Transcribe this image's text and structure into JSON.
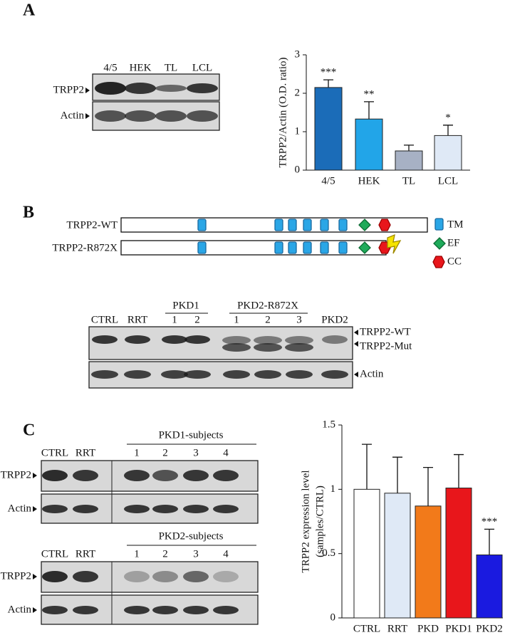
{
  "panel_labels": [
    "A",
    "B",
    "C"
  ],
  "panel_a": {
    "lanes": [
      "4/5",
      "HEK",
      "TL",
      "LCL"
    ],
    "rows": [
      "TRPP2",
      "Actin"
    ]
  },
  "panel_b": {
    "constructs": [
      "TRPP2-WT",
      "TRPP2-R872X"
    ],
    "legend": [
      "TM",
      "EF",
      "CC"
    ],
    "blot": {
      "groups": [
        "PKD1",
        "PKD2-R872X"
      ],
      "lanes": [
        "CTRL",
        "RRT",
        "1",
        "2",
        "1",
        "2",
        "3",
        "PKD2"
      ],
      "rows": [
        "TRPP2-WT",
        "TRPP2-Mut",
        "Actin"
      ]
    }
  },
  "panel_c": {
    "blots": [
      {
        "group": "PKD1-subjects",
        "lanes": [
          "CTRL",
          "RRT",
          "1",
          "2",
          "3",
          "4"
        ],
        "rows": [
          "TRPP2",
          "Actin"
        ]
      },
      {
        "group": "PKD2-subjects",
        "lanes": [
          "CTRL",
          "RRT",
          "1",
          "2",
          "3",
          "4"
        ],
        "rows": [
          "TRPP2",
          "Actin"
        ]
      }
    ]
  },
  "chart_data": [
    {
      "type": "bar",
      "y_label": "TRPP2/Actin (O.D. ratio)",
      "categories": [
        "4/5",
        "HEK",
        "TL",
        "LCL"
      ],
      "values": [
        2.15,
        1.33,
        0.5,
        0.9
      ],
      "errors": [
        0.2,
        0.45,
        0.15,
        0.27
      ],
      "significance": [
        "***",
        "**",
        null,
        "*"
      ],
      "colors": [
        "#1b6cb8",
        "#22a5e8",
        "#a7b1c4",
        "#dfe9f6"
      ],
      "ylim": [
        0,
        3
      ],
      "yticks": [
        0,
        1,
        2,
        3
      ]
    },
    {
      "type": "bar",
      "y_label": [
        "TRPP2 expression level",
        "(samples/CTRL)"
      ],
      "categories": [
        "CTRL",
        "RRT",
        "PKD",
        "PKD1",
        "PKD2"
      ],
      "values": [
        1.0,
        0.97,
        0.87,
        1.01,
        0.49
      ],
      "errors": [
        0.35,
        0.28,
        0.3,
        0.26,
        0.2
      ],
      "significance": [
        null,
        null,
        null,
        null,
        "***"
      ],
      "colors": [
        "#ffffff",
        "#dfe9f6",
        "#f27a1a",
        "#e8161b",
        "#1a1ae0"
      ],
      "ylim": [
        0,
        1.5
      ],
      "yticks": [
        0,
        0.5,
        1,
        1.5
      ]
    }
  ]
}
